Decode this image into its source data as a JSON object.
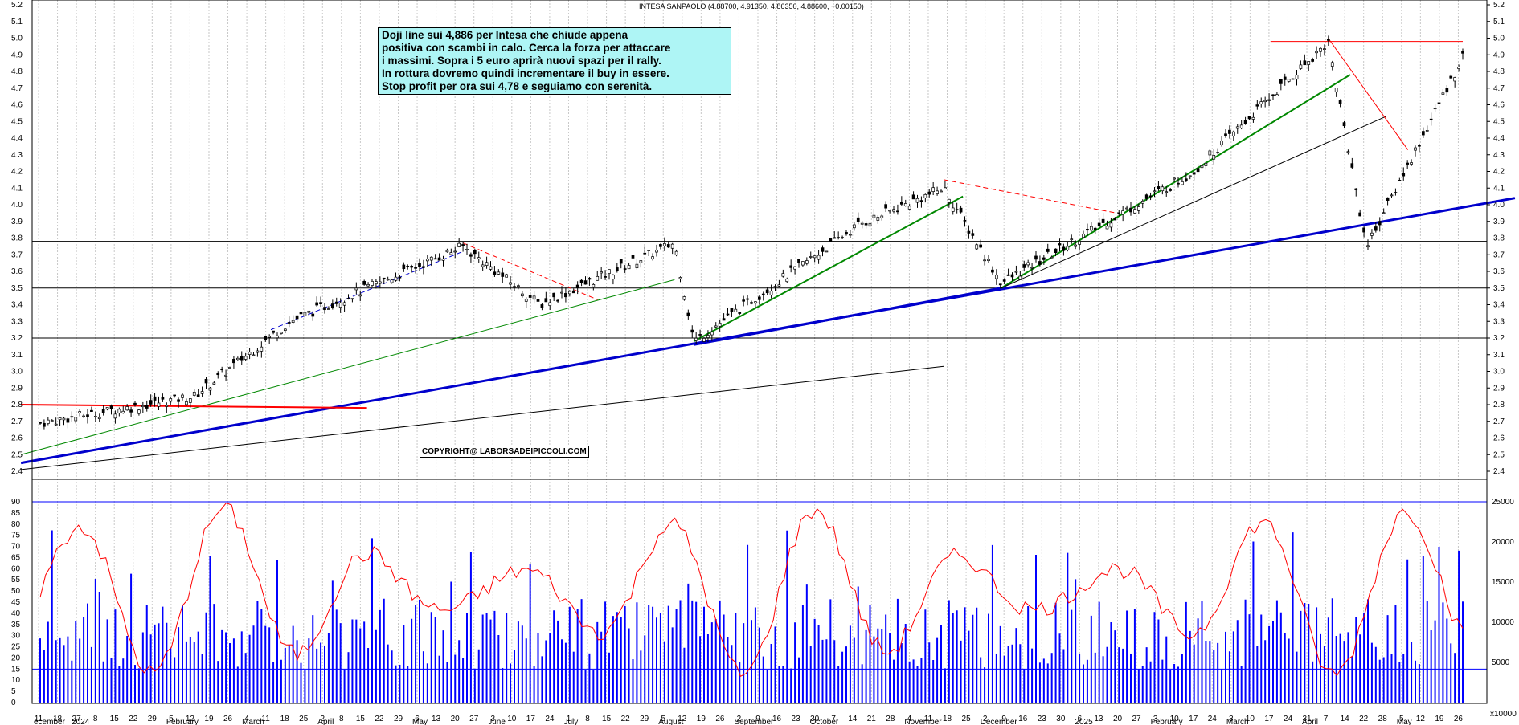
{
  "header": "INTESA SANPAOLO (4.88700, 4.91350, 4.86350, 4.88600, +0.00150)",
  "annotation_lines": [
    "Doji line sui 4,886  per Intesa che chiude appena",
    "positiva con scambi in calo. Cerca la forza per attaccare",
    "i massimi. Sopra i 5 euro aprirà nuovi spazi per il rally.",
    "In rottura dovremo quindi incrementare il buy in essere.",
    "Stop profit per ora sui 4,78 e seguiamo con serenità."
  ],
  "copyright": "COPYRIGHT@ LABORSADEIPICCOLI.COM",
  "colors": {
    "candles": "#000000",
    "oscillator": "#ff0000",
    "volume": "#0000ff",
    "trend_major": "#0000cc",
    "trend_minor": "#008800",
    "resistance": "#ff0000",
    "note_background": "#aef5f5"
  },
  "chart_data": [
    {
      "type": "candlestick",
      "title": "INTESA SANPAOLO",
      "ylim": [
        2.4,
        5.2
      ],
      "y_ticks": [
        "5.2",
        "5.1",
        "5.0",
        "4.9",
        "4.8",
        "4.7",
        "4.6",
        "4.5",
        "4.4",
        "4.3",
        "4.2",
        "4.1",
        "4.0",
        "3.9",
        "3.8",
        "3.7",
        "3.6",
        "3.5",
        "3.4",
        "3.3",
        "3.2",
        "3.1",
        "3.0",
        "2.9",
        "2.8",
        "2.7",
        "2.6",
        "2.5",
        "2.4"
      ],
      "horizontal_levels": [
        2.6,
        3.2,
        3.5,
        3.78
      ],
      "key_closes": [
        {
          "date": "2023-12-11",
          "close": 2.69
        },
        {
          "date": "2024-02-05",
          "close": 2.85
        },
        {
          "date": "2024-03-11",
          "close": 3.3
        },
        {
          "date": "2024-05-13",
          "close": 3.75
        },
        {
          "date": "2024-06-10",
          "close": 3.4
        },
        {
          "date": "2024-07-29",
          "close": 3.77
        },
        {
          "date": "2024-08-05",
          "close": 3.18
        },
        {
          "date": "2024-10-04",
          "close": 3.88
        },
        {
          "date": "2024-11-04",
          "close": 4.1
        },
        {
          "date": "2024-11-25",
          "close": 3.53
        },
        {
          "date": "2025-02-03",
          "close": 4.2
        },
        {
          "date": "2025-03-24",
          "close": 4.98
        },
        {
          "date": "2025-04-07",
          "close": 3.75
        },
        {
          "date": "2025-05-12",
          "close": 4.886
        }
      ]
    },
    {
      "type": "line+bar",
      "title": "Oscillator / Volume",
      "ylim": [
        0,
        90
      ],
      "y_ticks": [
        "90",
        "85",
        "80",
        "75",
        "70",
        "65",
        "60",
        "55",
        "50",
        "45",
        "40",
        "35",
        "30",
        "25",
        "20",
        "15",
        "10",
        "5",
        "0"
      ],
      "volume_ticks": [
        "25000",
        "20000",
        "15000",
        "10000",
        "5000"
      ],
      "volume_unit": "x10000",
      "levels": [
        15,
        90
      ]
    }
  ],
  "x_axis": {
    "day_labels": [
      "11",
      "18",
      "27",
      "8",
      "15",
      "22",
      "29",
      "5",
      "12",
      "19",
      "26",
      "4",
      "11",
      "18",
      "25",
      "2",
      "8",
      "15",
      "22",
      "29",
      "6",
      "13",
      "20",
      "27",
      "3",
      "10",
      "17",
      "24",
      "1",
      "8",
      "15",
      "22",
      "29",
      "5",
      "12",
      "19",
      "26",
      "2",
      "9",
      "16",
      "23",
      "30",
      "7",
      "14",
      "21",
      "28",
      "4",
      "11",
      "18",
      "25",
      "2",
      "9",
      "16",
      "23",
      "30",
      "6",
      "13",
      "20",
      "27",
      "3",
      "10",
      "17",
      "24",
      "3",
      "10",
      "17",
      "24",
      "31",
      "7",
      "14",
      "22",
      "28",
      "5",
      "12",
      "19",
      "26"
    ],
    "month_labels": [
      "ecember",
      "2024",
      "February",
      "March",
      "April",
      "May",
      "June",
      "July",
      "August",
      "September",
      "October",
      "November",
      "December",
      "2025",
      "February",
      "March",
      "April",
      "May"
    ]
  }
}
